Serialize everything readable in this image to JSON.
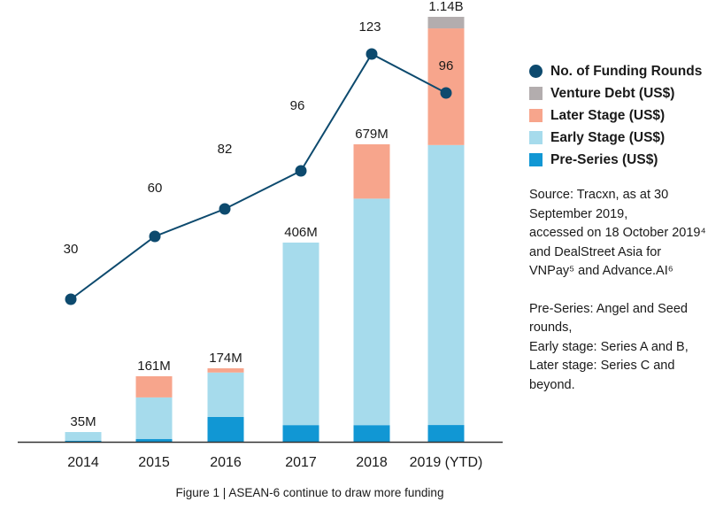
{
  "chart_data": {
    "type": "bar",
    "subtype": "stacked-bar-with-line",
    "title": "",
    "xlabel": "",
    "ylabel": "",
    "categories": [
      "2014",
      "2015",
      "2016",
      "2017",
      "2018",
      "2019 (YTD)"
    ],
    "totals_labels": [
      "35M",
      "161M",
      "174M",
      "406M",
      "679M",
      "1.14B"
    ],
    "totals_musd": [
      35,
      161,
      174,
      406,
      679,
      1140
    ],
    "series": [
      {
        "name": "Pre-Series (US$)",
        "color": "#1197d4",
        "values": [
          4,
          7,
          59,
          34,
          38,
          45
        ]
      },
      {
        "name": "Early Stage (US$)",
        "color": "#a6dbec",
        "values": [
          31,
          102,
          105,
          372,
          517,
          751
        ]
      },
      {
        "name": "Later Stage (US$)",
        "color": "#f7a58c",
        "values": [
          0,
          52,
          10,
          0,
          124,
          313
        ]
      },
      {
        "name": "Venture Debt (US$)",
        "color": "#b3adae",
        "values": [
          0,
          0,
          0,
          0,
          0,
          31
        ]
      }
    ],
    "line_series": {
      "name": "No. of Funding Rounds",
      "color": "#0d4a6e",
      "values": [
        30,
        60,
        82,
        96,
        123,
        96
      ],
      "labels": [
        "30",
        "60",
        "82",
        "96",
        "123",
        "96"
      ]
    },
    "units": "US$ millions (segment values estimated)",
    "grid": false,
    "legend_position": "right"
  },
  "legend": [
    {
      "label": "No. of Funding Rounds",
      "color": "#0d4a6e",
      "shape": "circle"
    },
    {
      "label": "Venture Debt (US$)",
      "color": "#b3adae",
      "shape": "square"
    },
    {
      "label": "Later Stage (US$)",
      "color": "#f7a58c",
      "shape": "square"
    },
    {
      "label": "Early Stage (US$)",
      "color": "#a6dbec",
      "shape": "square"
    },
    {
      "label": "Pre-Series (US$)",
      "color": "#1197d4",
      "shape": "square"
    }
  ],
  "notes": {
    "source": "Source: Tracxn, as at 30 September 2019,\naccessed on 18 October 2019⁴ and DealStreet Asia for VNPay⁵ and Advance.AI⁶",
    "definitions": "Pre-Series: Angel and Seed rounds,\nEarly stage: Series A and B,\nLater stage: Series C and beyond."
  },
  "caption": "Figure 1 | ASEAN-6 continue to draw more funding"
}
